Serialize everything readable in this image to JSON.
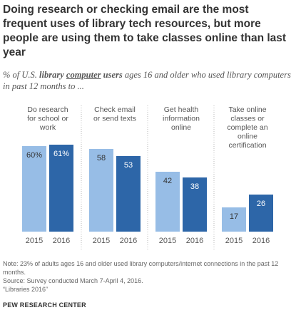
{
  "title": "Doing research or checking email are the most frequent uses of library tech resources, but more people are using them to take classes online than last year",
  "subtitle": {
    "prefix": "% of U.S. ",
    "bold1": "library ",
    "underlined": "computer",
    "bold2": " users",
    "suffix": " ages 16 and older who used library computers in past 12 months to ..."
  },
  "chart_data": {
    "type": "bar",
    "categories": [
      "2015",
      "2016"
    ],
    "ylim": [
      0,
      70
    ],
    "colors": {
      "2015": "#97bde6",
      "2016": "#2d66a8"
    },
    "panels": [
      {
        "label": [
          "Do research",
          "for school or",
          "work"
        ],
        "values": [
          60,
          61
        ],
        "value_labels": [
          "60%",
          "61%"
        ]
      },
      {
        "label": [
          "Check email",
          "or send texts"
        ],
        "values": [
          58,
          53
        ],
        "value_labels": [
          "58",
          "53"
        ]
      },
      {
        "label": [
          "Get health",
          "information",
          "online"
        ],
        "values": [
          42,
          38
        ],
        "value_labels": [
          "42",
          "38"
        ]
      },
      {
        "label": [
          "Take online",
          "classes or",
          "complete an",
          "online",
          "certification"
        ],
        "values": [
          17,
          26
        ],
        "value_labels": [
          "17",
          "26"
        ]
      }
    ]
  },
  "notes": [
    "Note: 23% of adults ages 16 and older used library computers/internet connections in the past 12 months.",
    " Source: Survey conducted March 7-April 4, 2016.",
    "“Libraries 2016”"
  ],
  "source_label": "PEW RESEARCH CENTER"
}
